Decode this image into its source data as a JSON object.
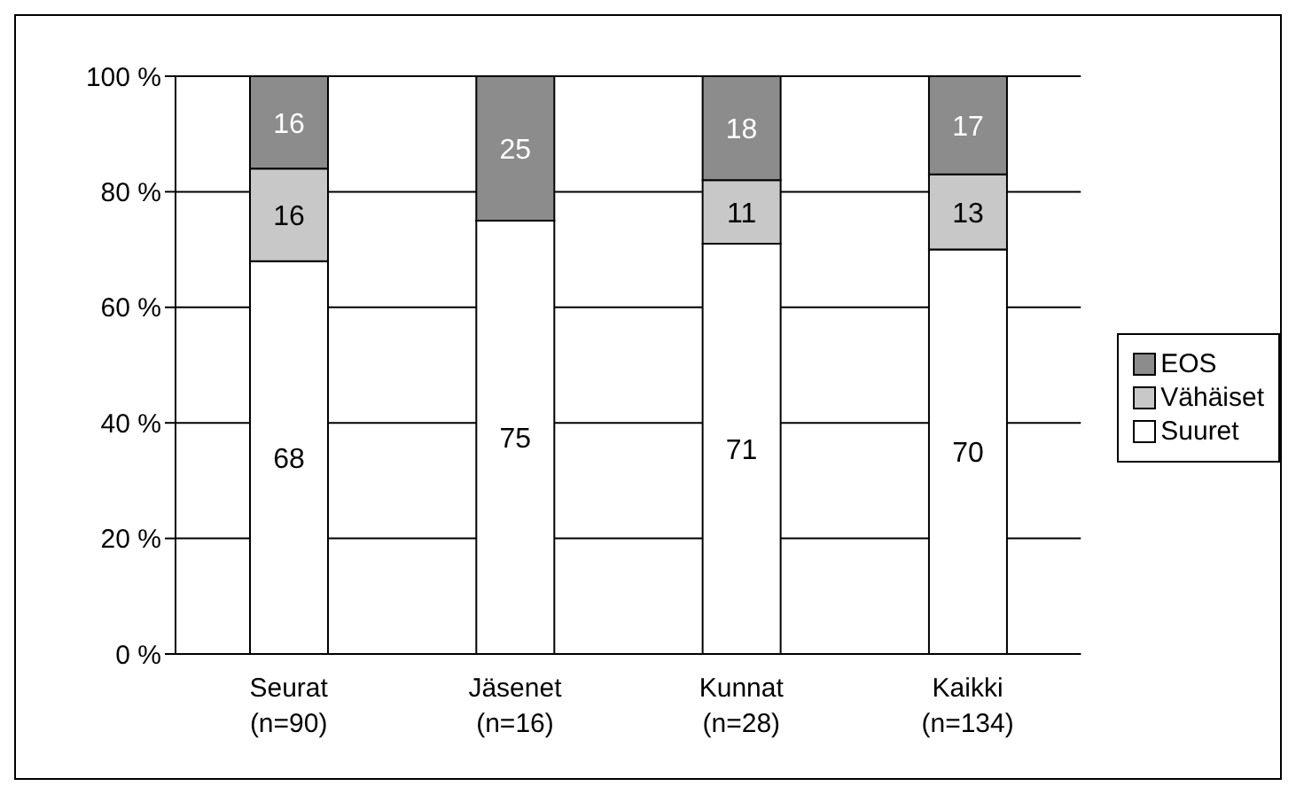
{
  "chart_data": {
    "type": "bar",
    "stacked": true,
    "categories": [
      "Seurat\n(n=90)",
      "Jäsenet\n(n=16)",
      "Kunnat\n(n=28)",
      "Kaikki\n(n=134)"
    ],
    "series": [
      {
        "name": "Suuret",
        "color": "#ffffff",
        "values": [
          68,
          75,
          71,
          70
        ]
      },
      {
        "name": "Vähäiset",
        "color": "#c8c8c8",
        "values": [
          16,
          null,
          11,
          13
        ]
      },
      {
        "name": "EOS",
        "color": "#8c8c8c",
        "values": [
          16,
          25,
          18,
          17
        ]
      }
    ],
    "ylim": [
      0,
      100
    ],
    "yticks": [
      {
        "value": 0,
        "label": "0 %"
      },
      {
        "value": 20,
        "label": "20 %"
      },
      {
        "value": 40,
        "label": "40 %"
      },
      {
        "value": 60,
        "label": "60 %"
      },
      {
        "value": 80,
        "label": "80 %"
      },
      {
        "value": 100,
        "label": "100 %"
      }
    ],
    "grid": "y",
    "legend": "right",
    "data_labels": true
  }
}
